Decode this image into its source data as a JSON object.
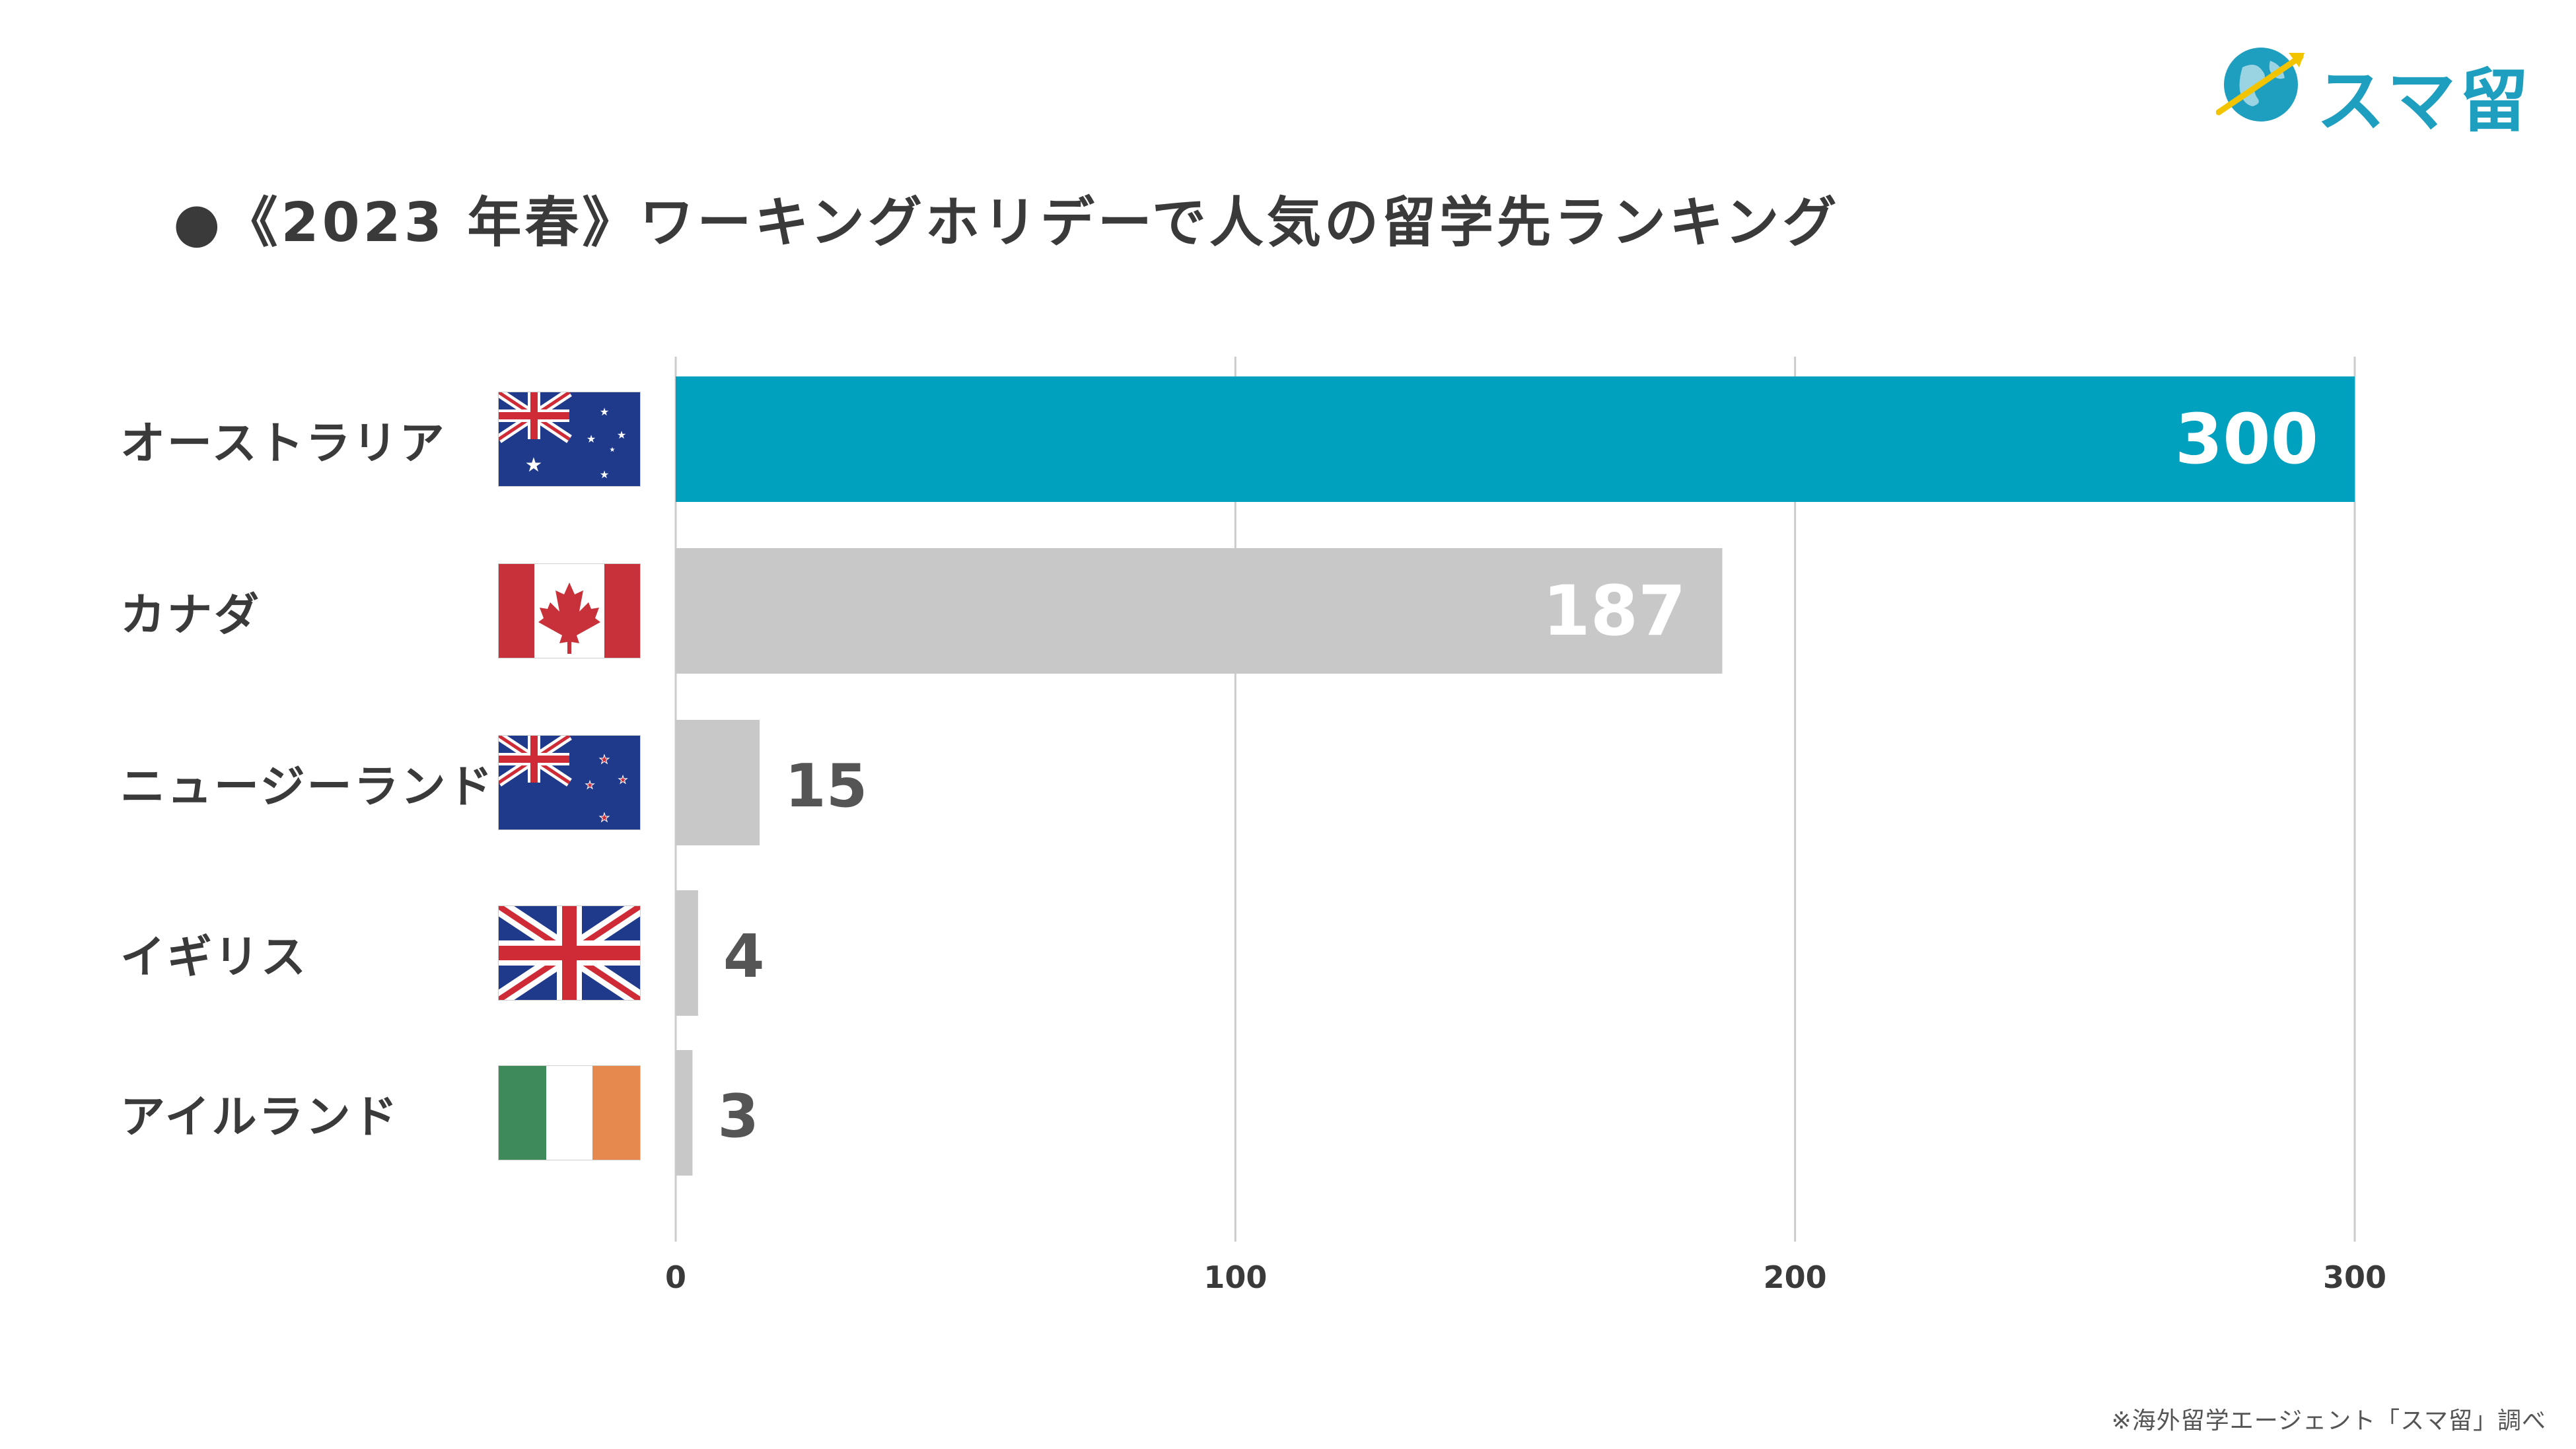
{
  "title": "●《2023 年春》ワーキングホリデーで人気の留学先ランキング",
  "logo": {
    "text": "スマ留",
    "icon": "globe-arrow-icon"
  },
  "source_note": "※海外留学エージェント「スマ留」調べ",
  "colors": {
    "highlight": "#00a0bf",
    "default_bar": "#c8c8c8",
    "grid": "#cccccc",
    "label_on_bar": "#ffffff",
    "label_off_bar": "#555555"
  },
  "chart_data": {
    "type": "bar",
    "orientation": "horizontal",
    "categories": [
      "オーストラリア",
      "カナダ",
      "ニュージーランド",
      "イギリス",
      "アイルランド"
    ],
    "flags": [
      "australia-flag-icon",
      "canada-flag-icon",
      "new-zealand-flag-icon",
      "uk-flag-icon",
      "ireland-flag-icon"
    ],
    "values": [
      300,
      187,
      15,
      4,
      3
    ],
    "data_labels": [
      "300",
      "187",
      "15",
      "4",
      "3"
    ],
    "highlight_index": 0,
    "xlim": [
      0,
      300
    ],
    "xticks": [
      0,
      100,
      200,
      300
    ],
    "xtick_labels": [
      "0",
      "100",
      "200",
      "300"
    ],
    "grid": true
  }
}
